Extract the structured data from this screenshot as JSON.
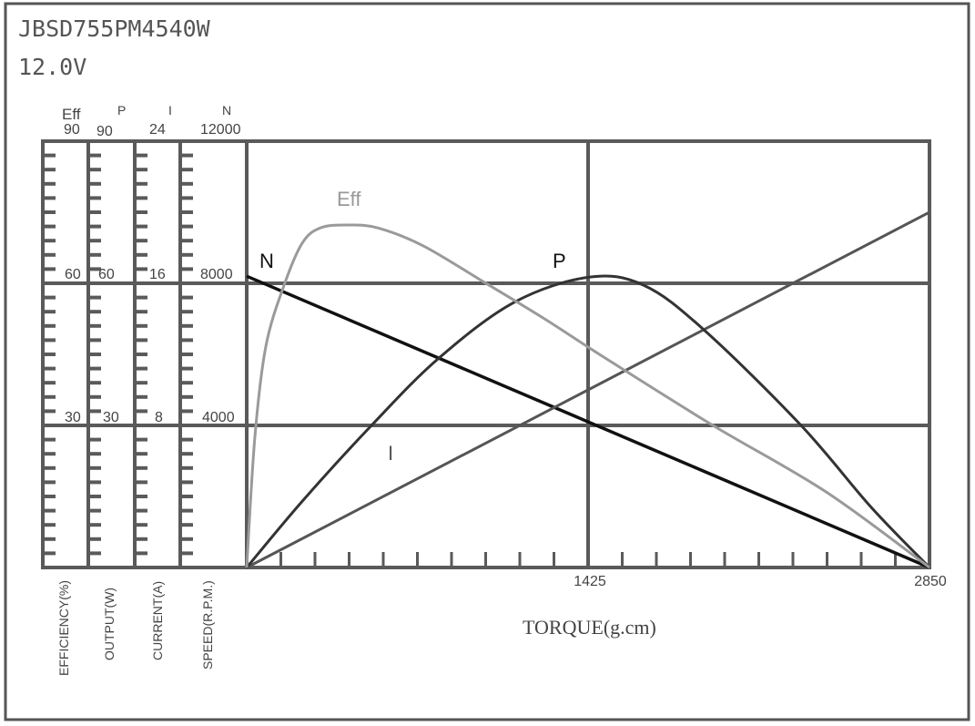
{
  "header": {
    "model": "JBSD755PM4540W",
    "voltage": "12.0V"
  },
  "chart_data": {
    "type": "line",
    "xlabel": "TORQUE(g.cm)",
    "xlim": [
      0,
      2850
    ],
    "x_ticks": [
      "1425",
      "2850"
    ],
    "grid": true,
    "axes": [
      {
        "key": "Eff",
        "label": "EFFICIENCY(%)",
        "name": "Eff",
        "ticks": [
          "30",
          "60",
          "90"
        ],
        "max": 90
      },
      {
        "key": "P",
        "label": "OUTPUT(W)",
        "name": "P",
        "ticks": [
          "30",
          "60",
          "90"
        ],
        "max": 90
      },
      {
        "key": "I",
        "label": "CURRENT(A)",
        "name": "I",
        "ticks": [
          "8",
          "16",
          "24"
        ],
        "max": 24
      },
      {
        "key": "N",
        "label": "SPEED(R.P.M.)",
        "name": "N",
        "ticks": [
          "4000",
          "8000",
          "12000"
        ],
        "max": 12000
      }
    ],
    "series": [
      {
        "name": "N",
        "axis": "N",
        "color": "#111111",
        "x": [
          0,
          2850
        ],
        "y": [
          8200,
          0
        ]
      },
      {
        "name": "I",
        "axis": "I",
        "color": "#555555",
        "x": [
          0,
          2850
        ],
        "y": [
          0,
          20
        ]
      },
      {
        "name": "P",
        "axis": "P",
        "color": "#333333",
        "x": [
          0,
          232,
          521,
          802,
          1117,
          1429,
          1657,
          1908,
          2314,
          2607,
          2850
        ],
        "y": [
          0,
          14,
          30,
          44.2,
          56,
          61.3,
          59.6,
          50.2,
          30,
          12.7,
          0
        ]
      },
      {
        "name": "Eff",
        "axis": "Eff",
        "color": "#9a9a9a",
        "x": [
          0,
          34,
          80,
          156,
          232,
          308,
          422,
          547,
          737,
          992,
          1243,
          1497,
          1946,
          2417,
          2850
        ],
        "y": [
          0,
          27.5,
          46.7,
          59.6,
          68.5,
          71.7,
          72.3,
          71.7,
          67.9,
          60.2,
          52.5,
          44.2,
          30,
          16,
          0
        ]
      }
    ]
  }
}
